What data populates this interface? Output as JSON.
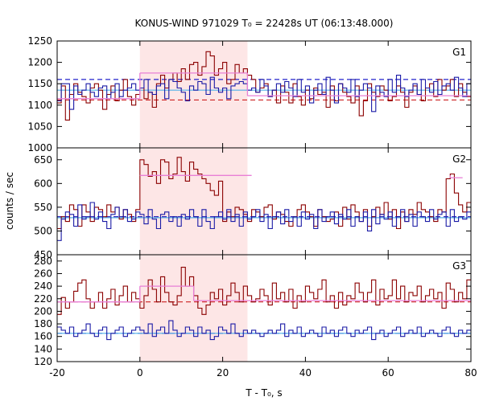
{
  "chart_data": {
    "type": "line",
    "title": "KONUS-WIND 971029 T₀ = 22428s UT (06:13:48.000)",
    "xlabel": "T - T₀, s",
    "ylabel": "counts / sec",
    "xlim": [
      -20,
      80
    ],
    "x_ticks": [
      -20,
      0,
      20,
      40,
      60,
      80
    ],
    "highlight_interval": [
      0,
      26
    ],
    "colors": {
      "series_red": "#8b0000",
      "series_blue": "#1a1aa6",
      "background_red": "#cc2222",
      "background_blue": "#2222cc",
      "fit_pink": "#e87fd6",
      "fit_cyan": "#4fb0e8",
      "highlight": "#fde6e6"
    },
    "panels": [
      {
        "name": "G1",
        "ylim": [
          1000,
          1250
        ],
        "y_ticks": [
          1000,
          1050,
          1100,
          1150,
          1200,
          1250
        ],
        "background_red": 1112,
        "background_blue": 1160,
        "fit_cyan": 1135,
        "series": [
          {
            "name": "red",
            "x_start": -20,
            "bin_width": 1,
            "values": [
              1105,
              1145,
              1065,
              1125,
              1150,
              1130,
              1120,
              1105,
              1140,
              1150,
              1135,
              1090,
              1125,
              1145,
              1110,
              1135,
              1160,
              1120,
              1100,
              1125,
              1140,
              1115,
              1130,
              1095,
              1150,
              1170,
              1140,
              1160,
              1175,
              1155,
              1185,
              1160,
              1195,
              1200,
              1170,
              1190,
              1225,
              1215,
              1170,
              1185,
              1200,
              1150,
              1160,
              1195,
              1175,
              1185,
              1170,
              1160,
              1130,
              1140,
              1150,
              1120,
              1135,
              1105,
              1145,
              1130,
              1105,
              1150,
              1120,
              1100,
              1135,
              1115,
              1140,
              1125,
              1130,
              1095,
              1145,
              1110,
              1150,
              1130,
              1120,
              1105,
              1145,
              1075,
              1110,
              1150,
              1130,
              1120,
              1145,
              1135,
              1110,
              1120,
              1145,
              1130,
              1095,
              1130,
              1145,
              1125,
              1110,
              1140,
              1150,
              1120,
              1160,
              1135,
              1145,
              1160,
              1120,
              1150,
              1130,
              1120
            ]
          },
          {
            "name": "blue",
            "x_start": -20,
            "bin_width": 1,
            "values": [
              1110,
              1150,
              1150,
              1090,
              1145,
              1125,
              1135,
              1150,
              1130,
              1120,
              1140,
              1145,
              1115,
              1130,
              1150,
              1120,
              1135,
              1140,
              1150,
              1135,
              1140,
              1160,
              1130,
              1125,
              1145,
              1150,
              1115,
              1160,
              1155,
              1140,
              1130,
              1110,
              1145,
              1135,
              1155,
              1150,
              1125,
              1165,
              1140,
              1130,
              1140,
              1115,
              1145,
              1150,
              1155,
              1150,
              1135,
              1140,
              1130,
              1160,
              1145,
              1120,
              1135,
              1150,
              1130,
              1155,
              1140,
              1120,
              1160,
              1130,
              1145,
              1105,
              1135,
              1150,
              1125,
              1165,
              1135,
              1105,
              1150,
              1140,
              1130,
              1160,
              1120,
              1135,
              1150,
              1140,
              1085,
              1145,
              1130,
              1120,
              1160,
              1130,
              1170,
              1140,
              1120,
              1135,
              1150,
              1125,
              1160,
              1140,
              1130,
              1155,
              1125,
              1145,
              1150,
              1135,
              1165,
              1140,
              1120,
              1150
            ]
          }
        ],
        "fit_steps": [
          {
            "x0": -20,
            "x1": 0,
            "y": 1115,
            "color": "pink"
          },
          {
            "x0": 0,
            "x1": 26,
            "y": 1175,
            "color": "pink"
          },
          {
            "x0": 26,
            "x1": 80,
            "y": 1122,
            "color": "pink"
          }
        ]
      },
      {
        "name": "G2",
        "ylim": [
          450,
          675
        ],
        "y_ticks": [
          450,
          500,
          550,
          600,
          650
        ],
        "background_red": 530,
        "background_blue": 530,
        "fit_cyan": 528,
        "series": [
          {
            "name": "red",
            "x_start": -20,
            "bin_width": 1,
            "values": [
              505,
              530,
              520,
              555,
              545,
              510,
              555,
              540,
              520,
              550,
              545,
              530,
              555,
              540,
              550,
              525,
              545,
              535,
              520,
              545,
              650,
              640,
              615,
              625,
              600,
              650,
              645,
              610,
              620,
              655,
              625,
              605,
              645,
              630,
              620,
              610,
              600,
              585,
              575,
              605,
              520,
              540,
              530,
              550,
              545,
              535,
              520,
              545,
              540,
              530,
              550,
              555,
              525,
              540,
              535,
              520,
              510,
              530,
              545,
              555,
              540,
              530,
              510,
              545,
              530,
              520,
              525,
              540,
              510,
              550,
              525,
              555,
              540,
              520,
              545,
              510,
              530,
              550,
              535,
              560,
              525,
              545,
              505,
              540,
              520,
              545,
              535,
              560,
              545,
              540,
              530,
              520,
              545,
              540,
              610,
              620,
              580,
              555,
              540,
              560
            ]
          },
          {
            "name": "blue",
            "x_start": -20,
            "bin_width": 1,
            "values": [
              480,
              525,
              540,
              535,
              510,
              555,
              525,
              530,
              560,
              525,
              540,
              520,
              505,
              535,
              550,
              530,
              545,
              520,
              525,
              540,
              535,
              515,
              545,
              525,
              505,
              535,
              540,
              520,
              530,
              510,
              535,
              525,
              545,
              530,
              510,
              545,
              520,
              505,
              530,
              540,
              525,
              545,
              520,
              535,
              510,
              540,
              525,
              530,
              545,
              520,
              535,
              505,
              530,
              540,
              515,
              545,
              520,
              530,
              510,
              540,
              525,
              535,
              505,
              545,
              520,
              530,
              540,
              515,
              535,
              525,
              545,
              510,
              530,
              520,
              540,
              500,
              545,
              515,
              535,
              525,
              540,
              510,
              530,
              545,
              520,
              535,
              510,
              540,
              530,
              520,
              545,
              525,
              535,
              540,
              510,
              545,
              520,
              530,
              525,
              540
            ]
          }
        ],
        "fit_steps": [
          {
            "x0": 0,
            "x1": 27,
            "y": 617,
            "color": "pink"
          },
          {
            "x0": 75,
            "x1": 78,
            "y": 612,
            "color": "pink"
          }
        ]
      },
      {
        "name": "G3",
        "ylim": [
          120,
          290
        ],
        "y_ticks": [
          120,
          140,
          160,
          180,
          200,
          220,
          240,
          260,
          280
        ],
        "background_red": 215,
        "background_blue": 165,
        "fit_cyan": 165,
        "series": [
          {
            "name": "red",
            "x_start": -20,
            "bin_width": 1,
            "values": [
              195,
              222,
              205,
              215,
              232,
              245,
              250,
              220,
              205,
              215,
              230,
              205,
              220,
              235,
              210,
              225,
              240,
              215,
              230,
              220,
              205,
              225,
              250,
              235,
              215,
              255,
              230,
              215,
              210,
              225,
              270,
              240,
              255,
              225,
              205,
              195,
              210,
              230,
              220,
              235,
              210,
              225,
              245,
              230,
              215,
              240,
              225,
              215,
              220,
              235,
              225,
              210,
              245,
              220,
              230,
              215,
              235,
              205,
              225,
              215,
              240,
              230,
              220,
              235,
              250,
              215,
              225,
              205,
              230,
              210,
              225,
              220,
              245,
              230,
              215,
              230,
              250,
              210,
              235,
              220,
              225,
              250,
              220,
              240,
              215,
              230,
              225,
              240,
              215,
              225,
              235,
              220,
              230,
              205,
              245,
              235,
              215,
              230,
              220,
              250
            ]
          },
          {
            "name": "blue",
            "x_start": -20,
            "bin_width": 1,
            "values": [
              175,
              170,
              165,
              175,
              160,
              165,
              170,
              180,
              165,
              160,
              170,
              175,
              155,
              165,
              170,
              175,
              160,
              165,
              170,
              175,
              170,
              165,
              180,
              160,
              170,
              175,
              165,
              185,
              170,
              160,
              165,
              175,
              170,
              160,
              175,
              165,
              170,
              155,
              160,
              175,
              170,
              165,
              180,
              165,
              160,
              170,
              165,
              170,
              165,
              160,
              165,
              170,
              165,
              170,
              180,
              160,
              170,
              165,
              175,
              160,
              165,
              170,
              165,
              160,
              175,
              165,
              170,
              160,
              170,
              175,
              165,
              160,
              170,
              165,
              170,
              175,
              155,
              165,
              170,
              160,
              165,
              170,
              175,
              160,
              165,
              170,
              165,
              175,
              160,
              165,
              170,
              165,
              160,
              170,
              175,
              165,
              160,
              170,
              165,
              170
            ]
          }
        ],
        "fit_steps": [
          {
            "x0": -20,
            "x1": 0,
            "y": 215,
            "color": "pink"
          },
          {
            "x0": 0,
            "x1": 13,
            "y": 240,
            "color": "pink"
          },
          {
            "x0": 13,
            "x1": 80,
            "y": 217,
            "color": "pink"
          }
        ]
      }
    ]
  }
}
